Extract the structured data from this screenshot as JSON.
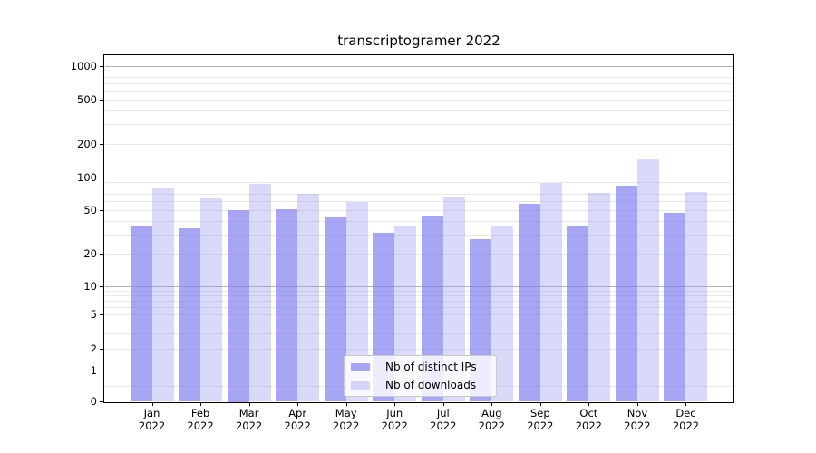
{
  "title": "transcriptogramer 2022",
  "legend": {
    "items": [
      {
        "label": "Nb of distinct IPs",
        "color": "rgba(128,128,240,0.70)"
      },
      {
        "label": "Nb of downloads",
        "color": "rgba(128,128,240,0.30)"
      }
    ],
    "position": "lower center"
  },
  "chart_data": {
    "type": "bar",
    "categories": [
      "Jan 2022",
      "Feb 2022",
      "Mar 2022",
      "Apr 2022",
      "May 2022",
      "Jun 2022",
      "Jul 2022",
      "Aug 2022",
      "Sep 2022",
      "Oct 2022",
      "Nov 2022",
      "Dec 2022"
    ],
    "series": [
      {
        "name": "Nb of distinct IPs",
        "values": [
          36,
          34,
          50,
          51,
          44,
          31,
          45,
          27,
          57,
          36,
          84,
          47
        ]
      },
      {
        "name": "Nb of downloads",
        "values": [
          81,
          64,
          86,
          70,
          59,
          36,
          66,
          36,
          88,
          72,
          146,
          73
        ]
      }
    ],
    "title": "transcriptogramer 2022",
    "xlabel": "",
    "ylabel": "",
    "yscale": "symlog",
    "y_ticks": [
      0,
      1,
      2,
      5,
      10,
      20,
      50,
      100,
      200,
      500,
      1000
    ],
    "ylim": [
      0,
      1300
    ],
    "grid": true,
    "legend_position": "lower center"
  },
  "colors": {
    "bar_dark": "rgba(128,128,240,0.70)",
    "bar_light": "rgba(128,128,240,0.30)",
    "grid_major": "#b3b3b3",
    "grid_minor": "#e8e8e8",
    "spine": "#000000"
  }
}
